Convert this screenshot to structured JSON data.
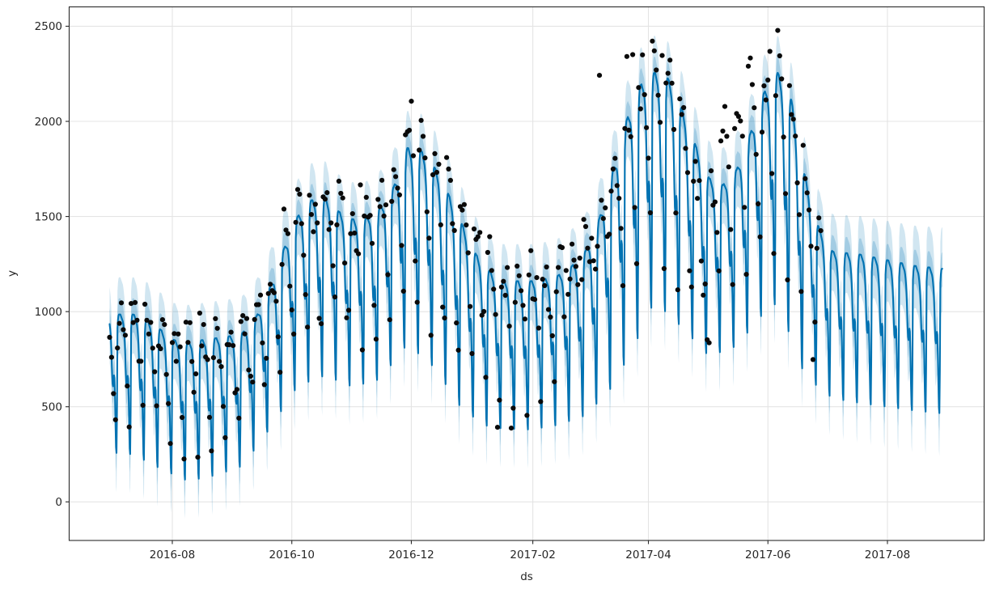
{
  "figure": {
    "background": "#ffffff",
    "grid_color": "#e4e4e4",
    "spine_color": "#2a2a2a",
    "tick_label_color": "#262626",
    "line_color": "#0072B2",
    "band_color": "#0072B2",
    "band_outer_alpha": 0.18,
    "band_inner_alpha": 0.22,
    "dot_color": "#0a0a0a"
  },
  "chart_data": {
    "type": "line",
    "title": "",
    "xlabel": "ds",
    "ylabel": "y",
    "legend": null,
    "grid": true,
    "x_tick_labels": [
      "2016-08",
      "2016-10",
      "2016-12",
      "2017-02",
      "2017-04",
      "2017-06",
      "2017-08"
    ],
    "x_tick_dates": [
      "2016-08-01",
      "2016-10-01",
      "2016-12-01",
      "2017-02-01",
      "2017-04-01",
      "2017-06-01",
      "2017-08-01"
    ],
    "y_tick_labels": [
      "0",
      "500",
      "1000",
      "1500",
      "2000",
      "2500"
    ],
    "y_tick_values": [
      0,
      500,
      1000,
      1500,
      2000,
      2500
    ],
    "ylim": [
      -220,
      2610
    ],
    "x_range": {
      "start": "2016-06-30",
      "history_end": "2017-06-28",
      "forecast_end": "2017-08-29"
    },
    "series": [
      {
        "name": "observed",
        "style": "scatter",
        "color": "#0a0a0a",
        "marker_radius": 3.1
      },
      {
        "name": "yhat",
        "style": "line",
        "color": "#0072B2",
        "line_width": 2.1
      },
      {
        "name": "uncertainty interval",
        "style": "band",
        "color": "#0072B2"
      }
    ],
    "weekday_peak_envelope": [
      [
        "2016-06-30",
        985
      ],
      [
        "2016-07-12",
        985
      ],
      [
        "2016-07-19",
        960
      ],
      [
        "2016-07-26",
        905
      ],
      [
        "2016-08-02",
        850
      ],
      [
        "2016-08-09",
        840
      ],
      [
        "2016-08-16",
        850
      ],
      [
        "2016-08-23",
        860
      ],
      [
        "2016-08-30",
        870
      ],
      [
        "2016-09-06",
        890
      ],
      [
        "2016-09-13",
        975
      ],
      [
        "2016-09-20",
        1130
      ],
      [
        "2016-09-27",
        1330
      ],
      [
        "2016-10-04",
        1500
      ],
      [
        "2016-10-11",
        1585
      ],
      [
        "2016-10-18",
        1595
      ],
      [
        "2016-10-25",
        1525
      ],
      [
        "2016-11-01",
        1485
      ],
      [
        "2016-11-08",
        1490
      ],
      [
        "2016-11-15",
        1545
      ],
      [
        "2016-11-22",
        1655
      ],
      [
        "2016-11-29",
        1860
      ],
      [
        "2016-12-06",
        1845
      ],
      [
        "2016-12-13",
        1755
      ],
      [
        "2016-12-20",
        1615
      ],
      [
        "2016-12-27",
        1455
      ],
      [
        "2017-01-03",
        1300
      ],
      [
        "2017-01-10",
        1210
      ],
      [
        "2017-01-17",
        1160
      ],
      [
        "2017-01-31",
        1160
      ],
      [
        "2017-02-07",
        1170
      ],
      [
        "2017-02-14",
        1190
      ],
      [
        "2017-02-21",
        1240
      ],
      [
        "2017-02-28",
        1320
      ],
      [
        "2017-03-07",
        1490
      ],
      [
        "2017-03-14",
        1740
      ],
      [
        "2017-03-21",
        2010
      ],
      [
        "2017-03-28",
        2190
      ],
      [
        "2017-04-04",
        2255
      ],
      [
        "2017-04-11",
        2225
      ],
      [
        "2017-04-18",
        2065
      ],
      [
        "2017-04-25",
        1875
      ],
      [
        "2017-05-02",
        1700
      ],
      [
        "2017-05-09",
        1665
      ],
      [
        "2017-05-16",
        1745
      ],
      [
        "2017-05-23",
        1935
      ],
      [
        "2017-05-30",
        2150
      ],
      [
        "2017-06-06",
        2255
      ],
      [
        "2017-06-13",
        2110
      ],
      [
        "2017-06-20",
        1705
      ],
      [
        "2017-06-27",
        1440
      ],
      [
        "2017-07-04",
        1315
      ],
      [
        "2017-07-18",
        1300
      ],
      [
        "2017-08-01",
        1270
      ],
      [
        "2017-08-15",
        1240
      ],
      [
        "2017-08-29",
        1225
      ]
    ],
    "weekend_trough_envelope": [
      [
        "2016-06-30",
        260
      ],
      [
        "2016-07-12",
        250
      ],
      [
        "2016-07-26",
        175
      ],
      [
        "2016-08-09",
        110
      ],
      [
        "2016-08-23",
        140
      ],
      [
        "2016-09-06",
        190
      ],
      [
        "2016-09-20",
        390
      ],
      [
        "2016-10-04",
        610
      ],
      [
        "2016-10-18",
        665
      ],
      [
        "2016-11-01",
        605
      ],
      [
        "2016-11-15",
        645
      ],
      [
        "2016-11-29",
        830
      ],
      [
        "2016-12-13",
        705
      ],
      [
        "2016-12-27",
        485
      ],
      [
        "2017-01-10",
        390
      ],
      [
        "2017-01-31",
        380
      ],
      [
        "2017-02-14",
        405
      ],
      [
        "2017-02-28",
        455
      ],
      [
        "2017-03-14",
        610
      ],
      [
        "2017-03-28",
        890
      ],
      [
        "2017-04-04",
        1055
      ],
      [
        "2017-04-18",
        920
      ],
      [
        "2017-05-02",
        765
      ],
      [
        "2017-05-16",
        820
      ],
      [
        "2017-05-30",
        995
      ],
      [
        "2017-06-06",
        1050
      ],
      [
        "2017-06-20",
        660
      ],
      [
        "2017-07-04",
        545
      ],
      [
        "2017-07-18",
        520
      ],
      [
        "2017-08-01",
        500
      ],
      [
        "2017-08-15",
        480
      ],
      [
        "2017-08-29",
        465
      ]
    ],
    "weekly_profile_quarter_day": [
      0.9,
      0.96,
      0.99,
      1.0,
      1.0,
      1.0,
      1.0,
      0.99,
      0.98,
      0.97,
      0.96,
      0.95,
      0.93,
      0.9,
      0.86,
      0.8,
      0.7,
      0.58,
      0.5,
      0.48,
      0.52,
      0.56,
      0.54,
      0.4,
      0.2,
      0.04,
      0.0,
      0.3
    ],
    "band": {
      "upper_offset": 195,
      "lower_offset": 205,
      "inner_upper": 85,
      "inner_lower": 95,
      "forecast_widen_per_day": 0.35
    },
    "scatter": {
      "noise_sigma": 80,
      "seed": 11,
      "weekly_profile": [
        1.0,
        1.04,
        1.01,
        0.96,
        0.8,
        0.52,
        0.3
      ],
      "flat_period": {
        "start": "2017-02-13",
        "end": "2017-03-12",
        "min_profile": 0.85
      },
      "adjustments": [
        {
          "start": "2017-05-06",
          "end": "2017-05-24",
          "top_add": 300
        },
        {
          "start": "2017-04-20",
          "end": "2017-04-29",
          "top_add": -200
        }
      ],
      "outliers": {
        "2016-07-01": 760,
        "2016-11-05": 1666,
        "2016-12-01": 2106,
        "2016-12-06": 2005,
        "2017-01-14": 392,
        "2017-01-21": 388,
        "2017-03-07": 2242,
        "2017-03-21": 2341,
        "2017-03-24": 2351,
        "2017-04-04": 2371,
        "2017-04-08": 2346,
        "2017-05-01": 852,
        "2017-05-02": 836,
        "2017-06-02": 2368,
        "2017-06-06": 2478,
        "2017-06-24": 748
      }
    }
  }
}
